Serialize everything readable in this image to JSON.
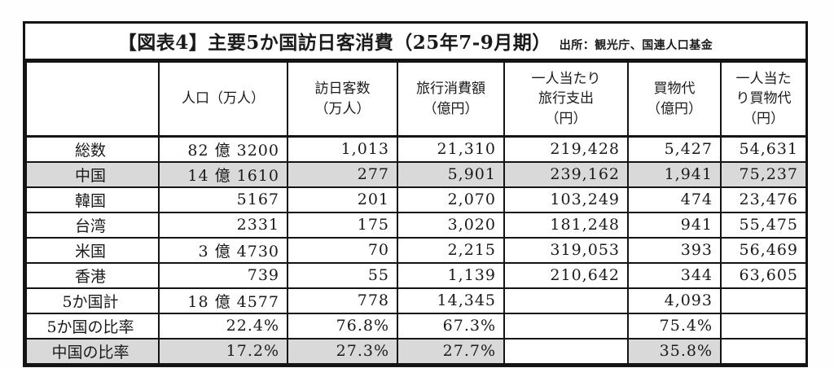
{
  "colors": {
    "border": "#141414",
    "text": "#1a1a1a",
    "row_highlight": "#d9d9d9",
    "paper": "#ffffff"
  },
  "chart_data": {
    "type": "table",
    "title": "【図表4】主要5か国訪日客消費（25年7-9月期）",
    "source": "出所：観光庁、国連人口基金",
    "columns": [
      "",
      "人口（万人）",
      "訪日客数\n（万人）",
      "旅行消費額\n（億円）",
      "一人当たり\n旅行支出\n（円）",
      "買物代\n（億円）",
      "一人当た\nり買物代\n（円）"
    ],
    "rows": [
      {
        "label": "総数",
        "values": [
          "82 億 3200",
          "1,013",
          "21,310",
          "219,428",
          "5,427",
          "54,631"
        ],
        "shade": [
          false,
          false,
          false,
          false,
          false,
          false,
          false
        ]
      },
      {
        "label": "中国",
        "values": [
          "14 億 1610",
          "277",
          "5,901",
          "239,162",
          "1,941",
          "75,237"
        ],
        "shade": [
          true,
          true,
          true,
          true,
          true,
          true,
          true
        ]
      },
      {
        "label": "韓国",
        "values": [
          "5167",
          "201",
          "2,070",
          "103,249",
          "474",
          "23,476"
        ],
        "shade": [
          false,
          false,
          false,
          false,
          false,
          false,
          false
        ]
      },
      {
        "label": "台湾",
        "values": [
          "2331",
          "175",
          "3,020",
          "181,248",
          "941",
          "55,475"
        ],
        "shade": [
          false,
          false,
          false,
          false,
          false,
          false,
          false
        ]
      },
      {
        "label": "米国",
        "values": [
          "3 億 4730",
          "70",
          "2,215",
          "319,053",
          "393",
          "56,469"
        ],
        "shade": [
          false,
          false,
          false,
          false,
          false,
          false,
          false
        ]
      },
      {
        "label": "香港",
        "values": [
          "739",
          "55",
          "1,139",
          "210,642",
          "344",
          "63,605"
        ],
        "shade": [
          false,
          false,
          false,
          false,
          false,
          false,
          false
        ]
      },
      {
        "label": "5か国計",
        "values": [
          "18 億 4577",
          "778",
          "14,345",
          "",
          "4,093",
          ""
        ],
        "shade": [
          false,
          false,
          false,
          false,
          false,
          false,
          false
        ]
      },
      {
        "label": "5か国の比率",
        "values": [
          "22.4%",
          "76.8%",
          "67.3%",
          "",
          "75.4%",
          ""
        ],
        "shade": [
          false,
          false,
          false,
          false,
          false,
          false,
          false
        ]
      },
      {
        "label": "中国の比率",
        "values": [
          "17.2%",
          "27.3%",
          "27.7%",
          "",
          "35.8%",
          ""
        ],
        "shade": [
          true,
          true,
          true,
          true,
          false,
          true,
          false
        ]
      }
    ]
  }
}
